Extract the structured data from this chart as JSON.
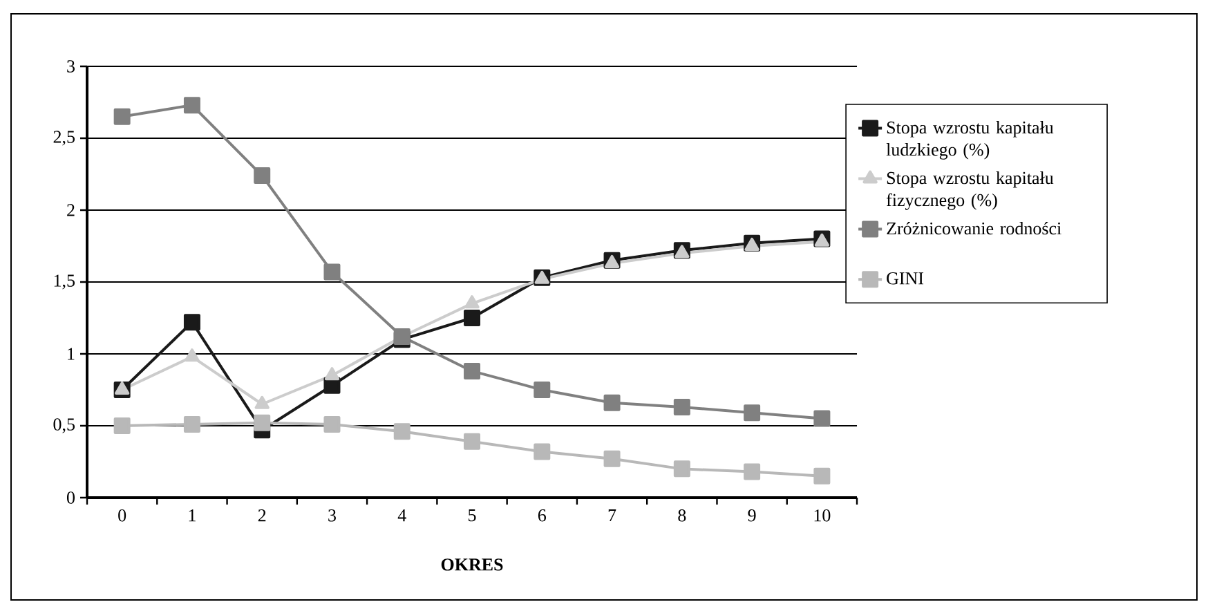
{
  "chart_data": {
    "type": "line",
    "xlabel": "OKRES",
    "categories": [
      "0",
      "1",
      "2",
      "3",
      "4",
      "5",
      "6",
      "7",
      "8",
      "9",
      "10"
    ],
    "ylim": [
      0,
      3
    ],
    "yticks": [
      0,
      {
        "value": 0.5,
        "label": "0,5"
      },
      1,
      {
        "value": 1.5,
        "label": "1,5"
      },
      2,
      {
        "value": 2.5,
        "label": "2,5"
      },
      3
    ],
    "grid": "y",
    "legend": "right",
    "line_style": "solid",
    "series": [
      {
        "name": "Stopa wzrostu kapitału ludzkiego (%)",
        "color": "#1a1a1a",
        "marker": "square",
        "values": [
          0.75,
          1.22,
          0.47,
          0.78,
          1.1,
          1.25,
          1.53,
          1.65,
          1.72,
          1.77,
          1.8
        ]
      },
      {
        "name": "Stopa wzrostu kapitału fizycznego (%)",
        "color": "#cccccc",
        "marker": "triangle",
        "values": [
          0.75,
          0.98,
          0.65,
          0.85,
          1.12,
          1.35,
          1.52,
          1.63,
          1.7,
          1.75,
          1.78
        ]
      },
      {
        "name": "Zróżnicowanie rodności",
        "color": "#808080",
        "marker": "square",
        "values": [
          2.65,
          2.73,
          2.24,
          1.57,
          1.12,
          0.88,
          0.75,
          0.66,
          0.63,
          0.59,
          0.55
        ]
      },
      {
        "name": "GINI",
        "color": "#b8b8b8",
        "marker": "square",
        "values": [
          0.5,
          0.51,
          0.52,
          0.51,
          0.46,
          0.39,
          0.32,
          0.27,
          0.2,
          0.18,
          0.15
        ]
      }
    ]
  }
}
